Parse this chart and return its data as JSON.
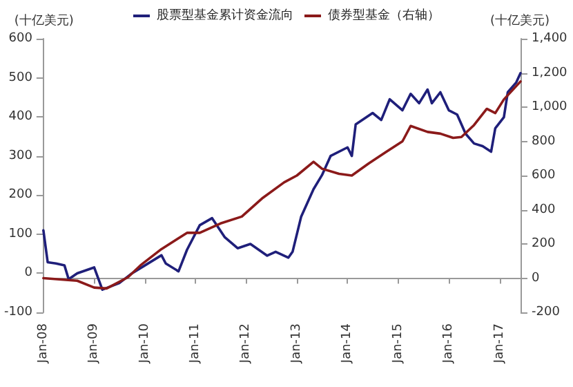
{
  "chart_data": {
    "type": "line",
    "ylabel": "(十亿美元)",
    "y2label": "(十亿美元)",
    "xlim": [
      "2008-01",
      "2017-06"
    ],
    "xticks": [
      {
        "value": "2008-01",
        "label": "Jan-08"
      },
      {
        "value": "2009-01",
        "label": "Jan-09"
      },
      {
        "value": "2010-01",
        "label": "Jan-10"
      },
      {
        "value": "2011-01",
        "label": "Jan-11"
      },
      {
        "value": "2012-01",
        "label": "Jan-12"
      },
      {
        "value": "2013-01",
        "label": "Jan-13"
      },
      {
        "value": "2014-01",
        "label": "Jan-14"
      },
      {
        "value": "2015-01",
        "label": "Jan-15"
      },
      {
        "value": "2016-01",
        "label": "Jan-16"
      },
      {
        "value": "2017-01",
        "label": "Jan-17"
      }
    ],
    "ylim": [
      -100,
      600
    ],
    "yticks": [
      -100,
      0,
      100,
      200,
      300,
      400,
      500,
      600
    ],
    "y2lim": [
      -200,
      1400
    ],
    "y2ticks": [
      -200,
      0,
      200,
      400,
      600,
      800,
      {
        "value": 1000,
        "label": "1,000"
      },
      {
        "value": 1200,
        "label": "1,200"
      },
      {
        "value": 1400,
        "label": "1,400"
      }
    ],
    "legend": "top",
    "marker": "none",
    "line_style": "solid",
    "series": [
      {
        "name": "股票型基金累计资金流向",
        "color": "#1f1f7a",
        "x": [
          "2008-01",
          "2008-02",
          "2008-04",
          "2008-06",
          "2008-07",
          "2008-09",
          "2009-01",
          "2009-03",
          "2009-07",
          "2009-10",
          "2010-01",
          "2010-05",
          "2010-06",
          "2010-09",
          "2010-11",
          "2011-02",
          "2011-05",
          "2011-08",
          "2011-11",
          "2012-02",
          "2012-06",
          "2012-08",
          "2012-11",
          "2012-12",
          "2013-02",
          "2013-05",
          "2013-07",
          "2013-09",
          "2014-01",
          "2014-02",
          "2014-03",
          "2014-07",
          "2014-09",
          "2014-11",
          "2015-02",
          "2015-04",
          "2015-06",
          "2015-08",
          "2015-09",
          "2015-11",
          "2016-01",
          "2016-03",
          "2016-05",
          "2016-07",
          "2016-09",
          "2016-11",
          "2016-12",
          "2017-02",
          "2017-03",
          "2017-05",
          "2017-06"
        ],
        "values": [
          110,
          28,
          25,
          20,
          -15,
          0,
          15,
          -42,
          -25,
          0,
          20,
          46,
          25,
          5,
          60,
          123,
          141,
          92,
          64,
          75,
          45,
          55,
          40,
          55,
          145,
          215,
          251,
          300,
          322,
          300,
          381,
          410,
          392,
          445,
          417,
          459,
          435,
          470,
          435,
          463,
          417,
          406,
          357,
          332,
          325,
          311,
          371,
          399,
          463,
          488,
          512
        ]
      },
      {
        "name": "债券型基金（右轴）",
        "color": "#8b1a1a",
        "axis": "y2",
        "x": [
          "2008-01",
          "2008-09",
          "2009-01",
          "2009-04",
          "2009-09",
          "2009-12",
          "2010-05",
          "2010-11",
          "2011-02",
          "2011-07",
          "2011-12",
          "2012-05",
          "2012-10",
          "2013-01",
          "2013-05",
          "2013-07",
          "2013-11",
          "2014-02",
          "2014-06",
          "2014-10",
          "2015-02",
          "2015-04",
          "2015-08",
          "2015-11",
          "2016-02",
          "2016-04",
          "2016-07",
          "2016-10",
          "2016-12",
          "2017-02",
          "2017-06"
        ],
        "values": [
          0,
          -15,
          -55,
          -60,
          5,
          75,
          170,
          265,
          265,
          320,
          360,
          470,
          560,
          600,
          680,
          640,
          610,
          600,
          670,
          735,
          800,
          890,
          855,
          845,
          820,
          825,
          895,
          990,
          965,
          1045,
          1150
        ]
      }
    ]
  }
}
